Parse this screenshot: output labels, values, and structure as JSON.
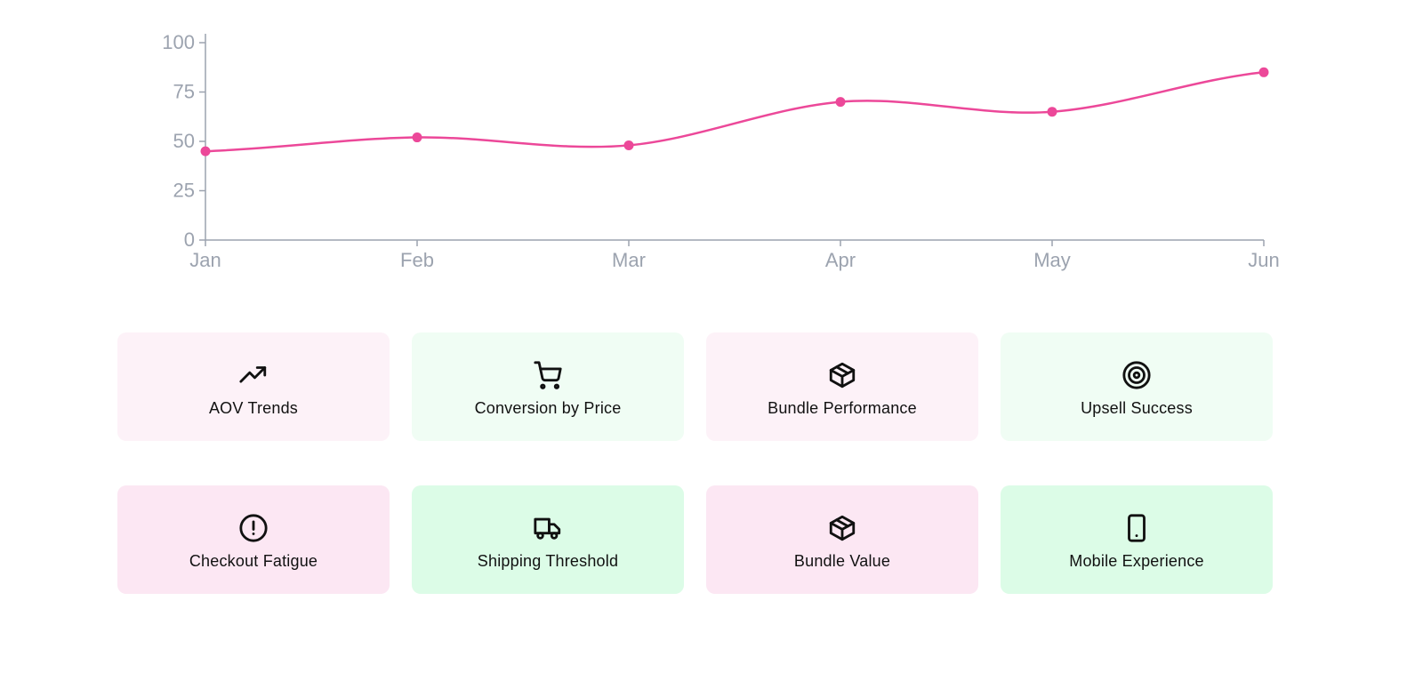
{
  "chart_data": {
    "type": "line",
    "x": [
      "Jan",
      "Feb",
      "Mar",
      "Apr",
      "May",
      "Jun"
    ],
    "series": [
      {
        "values": [
          45,
          52,
          48,
          70,
          65,
          85
        ]
      }
    ],
    "ylim": [
      0,
      100
    ],
    "yticks": [
      "0",
      "25",
      "50",
      "75",
      "100"
    ],
    "grid": false,
    "color": "#ec4899"
  },
  "cards": {
    "row1": [
      {
        "label": "AOV Trends",
        "icon": "trending-up-icon",
        "tone": "pink"
      },
      {
        "label": "Conversion by Price",
        "icon": "shopping-cart-icon",
        "tone": "green"
      },
      {
        "label": "Bundle Performance",
        "icon": "package-icon",
        "tone": "pink"
      },
      {
        "label": "Upsell Success",
        "icon": "target-icon",
        "tone": "green"
      }
    ],
    "row2": [
      {
        "label": "Checkout Fatigue",
        "icon": "alert-circle-icon",
        "tone": "pink"
      },
      {
        "label": "Shipping Threshold",
        "icon": "truck-icon",
        "tone": "green"
      },
      {
        "label": "Bundle Value",
        "icon": "package-icon",
        "tone": "pink"
      },
      {
        "label": "Mobile Experience",
        "icon": "tablet-icon",
        "tone": "green"
      }
    ]
  },
  "colors": {
    "pink_card": "#fce7f3",
    "green_card": "#dcfce7",
    "axis": "#9ca3af",
    "line": "#ec4899"
  }
}
